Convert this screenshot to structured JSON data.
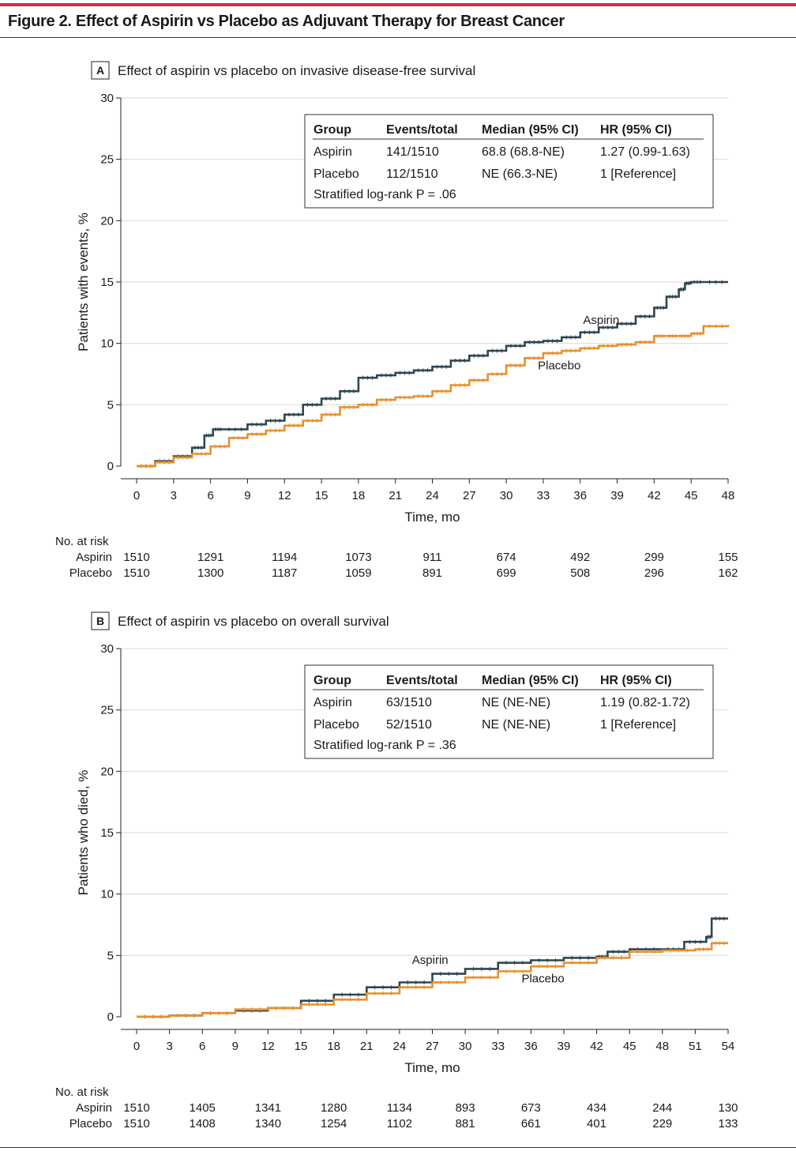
{
  "figure_title": "Figure 2. Effect of Aspirin vs Placebo as Adjuvant Therapy for Breast Cancer",
  "colors": {
    "aspirin": "#2d4750",
    "placebo": "#e8902c",
    "accent_rule": "#c8304a",
    "grid": "#d9d9d9"
  },
  "chart_data": [
    {
      "type": "line",
      "panel_letter": "A",
      "title": "Effect of aspirin vs placebo on invasive disease-free survival",
      "xlabel": "Time, mo",
      "ylabel": "Patients with events, %",
      "xlim": [
        0,
        48
      ],
      "ylim": [
        0,
        30
      ],
      "xticks": [
        0,
        3,
        6,
        9,
        12,
        15,
        18,
        21,
        24,
        27,
        30,
        33,
        36,
        39,
        42,
        45,
        48
      ],
      "yticks": [
        0,
        5,
        10,
        15,
        20,
        25,
        30
      ],
      "grid": true,
      "series": [
        {
          "name": "Aspirin",
          "label_x": 37.7,
          "label_y": 11.6,
          "x": [
            0,
            1.5,
            3,
            4.5,
            5.5,
            6.2,
            7,
            9,
            10.5,
            12,
            13.5,
            15,
            16.5,
            18,
            19.5,
            21,
            22.5,
            24,
            25.5,
            27,
            28.5,
            30,
            31.5,
            33,
            34.5,
            36,
            37.5,
            39,
            40.5,
            42,
            43,
            44,
            44.5,
            45,
            46,
            48
          ],
          "y": [
            0,
            0.4,
            0.8,
            1.5,
            2.5,
            3.0,
            3.0,
            3.4,
            3.7,
            4.2,
            5.0,
            5.5,
            6.1,
            7.2,
            7.4,
            7.6,
            7.8,
            8.1,
            8.6,
            9.0,
            9.4,
            9.8,
            10.1,
            10.2,
            10.5,
            10.9,
            11.3,
            11.6,
            12.2,
            12.9,
            13.8,
            14.4,
            14.9,
            15.0,
            15.0,
            15.0
          ]
        },
        {
          "name": "Placebo",
          "label_x": 34.3,
          "label_y": 7.9,
          "x": [
            0,
            1.5,
            3,
            4.5,
            6,
            7.5,
            9,
            10.5,
            12,
            13.5,
            15,
            16.5,
            18,
            19.5,
            21,
            22.5,
            24,
            25.5,
            27,
            28.5,
            30,
            31.5,
            33,
            34.5,
            36,
            37.5,
            39,
            40.5,
            42,
            43,
            44,
            45,
            46,
            48
          ],
          "y": [
            0,
            0.3,
            0.7,
            1.0,
            1.6,
            2.3,
            2.6,
            2.9,
            3.3,
            3.7,
            4.2,
            4.8,
            5.0,
            5.4,
            5.6,
            5.7,
            6.1,
            6.6,
            7.0,
            7.5,
            8.2,
            8.8,
            9.2,
            9.4,
            9.6,
            9.8,
            9.9,
            10.1,
            10.6,
            10.6,
            10.6,
            10.8,
            11.4,
            11.5
          ]
        }
      ],
      "legend_table": {
        "headers": [
          "Group",
          "Events/total",
          "Median (95% CI)",
          "HR (95% CI)"
        ],
        "rows": [
          [
            "Aspirin",
            "141/1510",
            "68.8 (68.8-NE)",
            "1.27 (0.99-1.63)"
          ],
          [
            "Placebo",
            "112/1510",
            "NE (66.3-NE)",
            "1 [Reference]"
          ]
        ],
        "logrank": "Stratified log-rank P = .06"
      },
      "at_risk": {
        "header": "No. at risk",
        "times": [
          0,
          6,
          12,
          18,
          24,
          30,
          36,
          42,
          48
        ],
        "groups": [
          {
            "name": "Aspirin",
            "values": [
              "1510",
              "1291",
              "1194",
              "1073",
              "911",
              "674",
              "492",
              "299",
              "155"
            ]
          },
          {
            "name": "Placebo",
            "values": [
              "1510",
              "1300",
              "1187",
              "1059",
              "891",
              "699",
              "508",
              "296",
              "162"
            ]
          }
        ]
      }
    },
    {
      "type": "line",
      "panel_letter": "B",
      "title": "Effect of aspirin vs placebo on overall survival",
      "xlabel": "Time, mo",
      "ylabel": "Patients who died, %",
      "xlim": [
        0,
        54
      ],
      "ylim": [
        0,
        30
      ],
      "xticks": [
        0,
        3,
        6,
        9,
        12,
        15,
        18,
        21,
        24,
        27,
        30,
        33,
        36,
        39,
        42,
        45,
        48,
        51,
        54
      ],
      "yticks": [
        0,
        5,
        10,
        15,
        20,
        25,
        30
      ],
      "grid": true,
      "series": [
        {
          "name": "Aspirin",
          "label_x": 26.8,
          "label_y": 4.3,
          "x": [
            0,
            3,
            6,
            9,
            12,
            15,
            18,
            21,
            24,
            27,
            30,
            33,
            36,
            39,
            42,
            43,
            45,
            48,
            50,
            52,
            52.5,
            54
          ],
          "y": [
            0,
            0.1,
            0.3,
            0.5,
            0.7,
            1.3,
            1.8,
            2.4,
            2.8,
            3.5,
            3.9,
            4.4,
            4.6,
            4.8,
            4.9,
            5.3,
            5.5,
            5.5,
            6.1,
            6.5,
            8.0,
            8.0
          ]
        },
        {
          "name": "Placebo",
          "label_x": 37.1,
          "label_y": 2.8,
          "x": [
            0,
            3,
            6,
            9,
            12,
            15,
            18,
            21,
            24,
            27,
            30,
            33,
            36,
            39,
            42,
            45,
            48,
            51,
            52.5,
            54
          ],
          "y": [
            0,
            0.1,
            0.3,
            0.6,
            0.7,
            1.0,
            1.4,
            1.9,
            2.4,
            2.8,
            3.2,
            3.7,
            4.1,
            4.4,
            4.8,
            5.3,
            5.4,
            5.5,
            6.0,
            6.0
          ]
        }
      ],
      "legend_table": {
        "headers": [
          "Group",
          "Events/total",
          "Median (95% CI)",
          "HR (95% CI)"
        ],
        "rows": [
          [
            "Aspirin",
            "63/1510",
            "NE (NE-NE)",
            "1.19 (0.82-1.72)"
          ],
          [
            "Placebo",
            "52/1510",
            "NE (NE-NE)",
            "1 [Reference]"
          ]
        ],
        "logrank": "Stratified log-rank P = .36"
      },
      "at_risk": {
        "header": "No. at risk",
        "times": [
          0,
          6,
          12,
          18,
          24,
          30,
          36,
          42,
          48,
          54
        ],
        "groups": [
          {
            "name": "Aspirin",
            "values": [
              "1510",
              "1405",
              "1341",
              "1280",
              "1134",
              "893",
              "673",
              "434",
              "244",
              "130"
            ]
          },
          {
            "name": "Placebo",
            "values": [
              "1510",
              "1408",
              "1340",
              "1254",
              "1102",
              "881",
              "661",
              "401",
              "229",
              "133"
            ]
          }
        ]
      }
    }
  ]
}
